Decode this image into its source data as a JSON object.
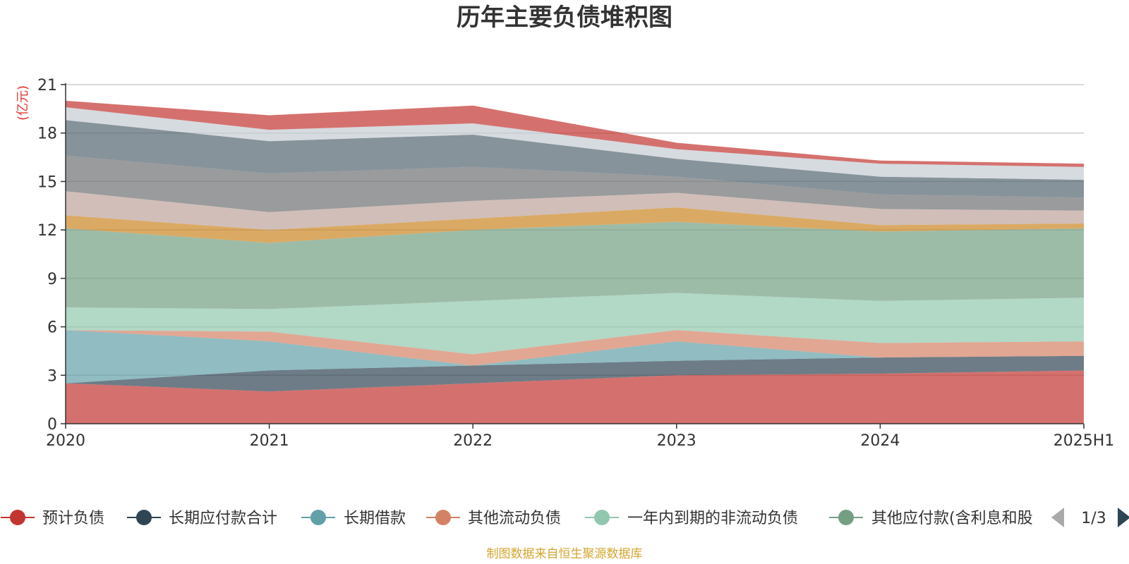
{
  "chart_data": {
    "type": "area",
    "stacked": true,
    "title": "历年主要负债堆积图",
    "unit_label": "(亿元)",
    "x": [
      "2020",
      "2021",
      "2022",
      "2023",
      "2024",
      "2025H1"
    ],
    "yticks": [
      "0",
      "3",
      "6",
      "9",
      "12",
      "15",
      "18",
      "21"
    ],
    "ylim": [
      0,
      21
    ],
    "grid": true,
    "legend_position": "bottom",
    "legend_page": "1/3",
    "footer": "制图数据来自恒生聚源数据库",
    "series": [
      {
        "name": "预计负债",
        "color": "#c23531",
        "values": [
          2.5,
          2.0,
          2.5,
          3.0,
          3.1,
          3.3
        ]
      },
      {
        "name": "长期应付款合计",
        "color": "#2f4554",
        "values": [
          0.0,
          1.3,
          1.1,
          0.9,
          1.0,
          0.9
        ]
      },
      {
        "name": "长期借款",
        "color": "#61a0a8",
        "values": [
          3.3,
          1.8,
          0.0,
          1.2,
          0.0,
          0.0
        ]
      },
      {
        "name": "其他流动负债",
        "color": "#d48265",
        "values": [
          0.0,
          0.6,
          0.7,
          0.7,
          0.9,
          0.9
        ]
      },
      {
        "name": "一年内到期的非流动负债",
        "color": "#91c7ae",
        "values": [
          1.4,
          1.4,
          3.3,
          2.3,
          2.6,
          2.7
        ]
      },
      {
        "name": "其他应付款(含利息和股",
        "color": "#749f83",
        "values": [
          4.9,
          4.1,
          4.4,
          4.4,
          4.3,
          4.3
        ]
      },
      {
        "name": "",
        "color": "#ca8622",
        "values": [
          0.8,
          0.8,
          0.7,
          0.9,
          0.4,
          0.3
        ]
      },
      {
        "name": "",
        "color": "#bda29a",
        "values": [
          1.5,
          1.1,
          1.1,
          0.9,
          1.0,
          0.8
        ]
      },
      {
        "name": "",
        "color": "#6e7074",
        "values": [
          2.2,
          2.4,
          2.1,
          1.0,
          0.9,
          0.8
        ]
      },
      {
        "name": "",
        "color": "#546570",
        "values": [
          2.2,
          2.0,
          2.0,
          1.1,
          1.1,
          1.1
        ]
      },
      {
        "name": "",
        "color": "#c4ccd3",
        "values": [
          0.8,
          0.7,
          0.7,
          0.6,
          0.8,
          0.8
        ]
      },
      {
        "name": "",
        "color": "#c23531",
        "values": [
          0.4,
          0.9,
          1.1,
          0.4,
          0.2,
          0.2
        ]
      }
    ]
  }
}
